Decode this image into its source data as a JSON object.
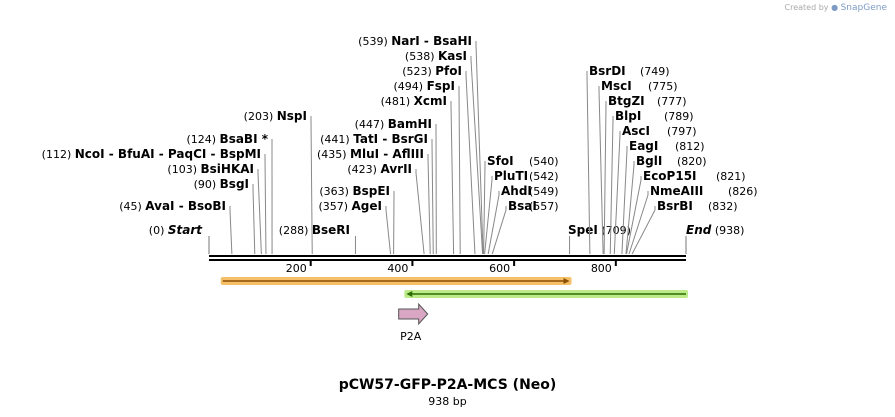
{
  "credit": {
    "text": "Created by",
    "brand": "SnapGene"
  },
  "title": "pCW57-GFP-P2A-MCS (Neo)",
  "subtitle": "938 bp",
  "sequence": {
    "length": 938,
    "start_label": "Start",
    "start_pos": "(0)",
    "end_label": "End",
    "end_pos": "(938)"
  },
  "ticks": [
    {
      "value": 200,
      "label": "200"
    },
    {
      "value": 400,
      "label": "400"
    },
    {
      "value": 600,
      "label": "600"
    },
    {
      "value": 800,
      "label": "800"
    }
  ],
  "sites_left": [
    {
      "pos": "(45)",
      "names": [
        "AvaI",
        "BsoBI"
      ],
      "bp": 45
    },
    {
      "pos": "(90)",
      "names": [
        "BsgI"
      ],
      "bp": 90
    },
    {
      "pos": "(103)",
      "names": [
        "BsiHKAI"
      ],
      "bp": 103
    },
    {
      "pos": "(112)",
      "names": [
        "NcoI",
        "BfuAI",
        "PaqCI",
        "BspMI"
      ],
      "bp": 112
    },
    {
      "pos": "(124)",
      "names": [
        "BsaBI *"
      ],
      "bp": 124
    },
    {
      "pos": "(203)",
      "names": [
        "NspI"
      ],
      "bp": 203
    },
    {
      "pos": "(288)",
      "names": [
        "BseRI"
      ],
      "bp": 288,
      "inline": true
    },
    {
      "pos": "(357)",
      "names": [
        "AgeI"
      ],
      "bp": 357
    },
    {
      "pos": "(363)",
      "names": [
        "BspEI"
      ],
      "bp": 363
    },
    {
      "pos": "(423)",
      "names": [
        "AvrII"
      ],
      "bp": 423
    },
    {
      "pos": "(435)",
      "names": [
        "MluI",
        "AflIII"
      ],
      "bp": 435
    },
    {
      "pos": "(441)",
      "names": [
        "TatI",
        "BsrGI"
      ],
      "bp": 441
    },
    {
      "pos": "(447)",
      "names": [
        "BamHI"
      ],
      "bp": 447
    },
    {
      "pos": "(481)",
      "names": [
        "XcmI"
      ],
      "bp": 481
    },
    {
      "pos": "(494)",
      "names": [
        "FspI"
      ],
      "bp": 494
    },
    {
      "pos": "(523)",
      "names": [
        "PfoI"
      ],
      "bp": 523
    },
    {
      "pos": "(538)",
      "names": [
        "KasI"
      ],
      "bp": 538
    },
    {
      "pos": "(539)",
      "names": [
        "NarI",
        "BsaHI"
      ],
      "bp": 539
    }
  ],
  "sites_right": [
    {
      "pos": "(540)",
      "names": [
        "SfoI"
      ],
      "bp": 540
    },
    {
      "pos": "(542)",
      "names": [
        "PluTI"
      ],
      "bp": 542
    },
    {
      "pos": "(549)",
      "names": [
        "AhdI"
      ],
      "bp": 549
    },
    {
      "pos": "(557)",
      "names": [
        "BsaI"
      ],
      "bp": 557
    },
    {
      "pos": "(709)",
      "names": [
        "SpeI"
      ],
      "bp": 709,
      "inline": true
    },
    {
      "pos": "(749)",
      "names": [
        "BsrDI"
      ],
      "bp": 749
    },
    {
      "pos": "(775)",
      "names": [
        "MscI"
      ],
      "bp": 775
    },
    {
      "pos": "(777)",
      "names": [
        "BtgZI"
      ],
      "bp": 777
    },
    {
      "pos": "(789)",
      "names": [
        "BlpI"
      ],
      "bp": 789
    },
    {
      "pos": "(797)",
      "names": [
        "AscI"
      ],
      "bp": 797
    },
    {
      "pos": "(812)",
      "names": [
        "EagI"
      ],
      "bp": 812
    },
    {
      "pos": "(820)",
      "names": [
        "BglI"
      ],
      "bp": 820
    },
    {
      "pos": "(821)",
      "names": [
        "EcoP15I"
      ],
      "bp": 821
    },
    {
      "pos": "(826)",
      "names": [
        "NmeAIII"
      ],
      "bp": 826
    },
    {
      "pos": "(832)",
      "names": [
        "BsrBI"
      ],
      "bp": 832
    }
  ],
  "features": [
    {
      "name": "orange-feature",
      "start": 27,
      "end": 709,
      "direction": "forward",
      "color": "#f6bf6a",
      "stroke": "#8a4f00"
    },
    {
      "name": "green-feature",
      "start": 388,
      "end": 938,
      "direction": "reverse",
      "color": "#bdeb8a",
      "stroke": "#2c6e00"
    },
    {
      "name": "P2A",
      "label": "P2A",
      "start": 373,
      "end": 430,
      "direction": "forward",
      "color": "#d9a6c3",
      "stroke": "#555555"
    }
  ]
}
